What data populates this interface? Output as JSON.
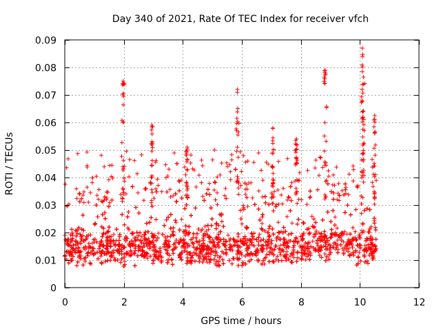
{
  "chart_data": {
    "type": "scatter",
    "title": "Day 340 of 2021, Rate Of TEC Index for receiver vfch",
    "xlabel": "GPS time / hours",
    "ylabel": "ROTI / TECUs",
    "xlim": [
      0,
      12
    ],
    "ylim": [
      0,
      0.09
    ],
    "x_ticks": [
      0,
      2,
      4,
      6,
      8,
      10,
      12
    ],
    "x_tick_labels": [
      "0",
      "2",
      "4",
      "6",
      "8",
      "10",
      "12"
    ],
    "y_ticks": [
      0,
      0.01,
      0.02,
      0.03,
      0.04,
      0.05,
      0.06,
      0.07,
      0.08,
      0.09
    ],
    "y_tick_labels": [
      "0",
      "0.01",
      "0.02",
      "0.03",
      "0.04",
      "0.05",
      "0.06",
      "0.07",
      "0.08",
      "0.09"
    ],
    "grid": true,
    "marker": "plus",
    "marker_color": "#ff0000",
    "series": [
      {
        "name": "ROTI",
        "data_range_x": [
          0.0,
          10.55
        ],
        "typical_band": [
          0.008,
          0.03
        ],
        "peaks": [
          {
            "x": 1.98,
            "y": 0.075
          },
          {
            "x": 2.95,
            "y": 0.059
          },
          {
            "x": 4.15,
            "y": 0.051
          },
          {
            "x": 5.85,
            "y": 0.072
          },
          {
            "x": 7.05,
            "y": 0.058
          },
          {
            "x": 7.85,
            "y": 0.054
          },
          {
            "x": 8.82,
            "y": 0.079
          },
          {
            "x": 10.08,
            "y": 0.087
          },
          {
            "x": 10.12,
            "y": 0.0765
          },
          {
            "x": 10.5,
            "y": 0.0625
          }
        ]
      }
    ]
  }
}
